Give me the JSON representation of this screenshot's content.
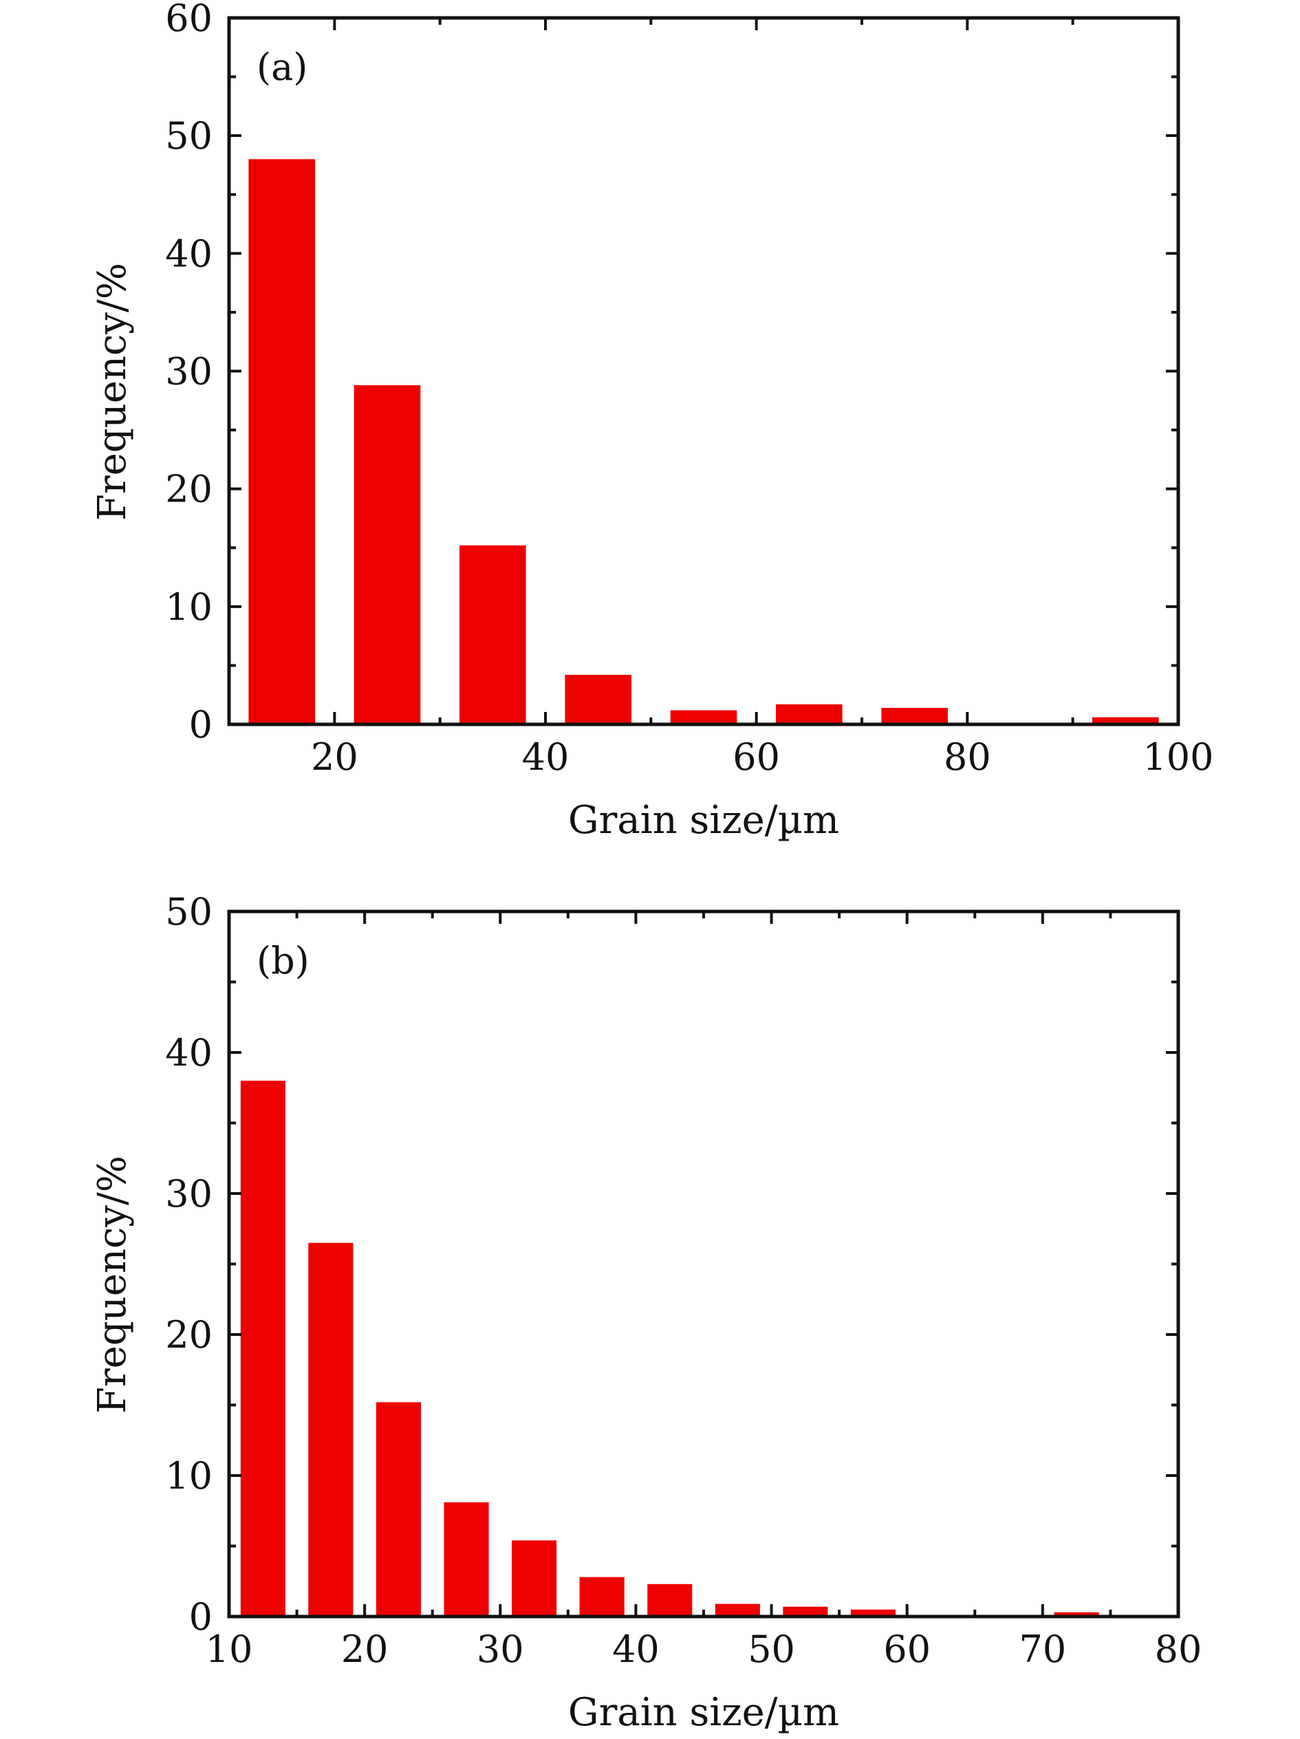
{
  "chart_data": [
    {
      "type": "bar",
      "panel_label": "(a)",
      "xlabel": "Grain size/µm",
      "ylabel": "Frequency/%",
      "xlim": [
        10,
        100
      ],
      "ylim": [
        0,
        60
      ],
      "x_ticks": [
        20,
        40,
        60,
        80,
        100
      ],
      "y_ticks": [
        0,
        10,
        20,
        30,
        40,
        50,
        60
      ],
      "x_minor_step": 10,
      "y_minor_step": 5,
      "bin_width": 10,
      "bar_width": 6.3,
      "x": [
        15,
        25,
        35,
        45,
        55,
        65,
        75,
        85,
        95
      ],
      "values": [
        48.0,
        28.8,
        15.2,
        4.2,
        1.2,
        1.7,
        1.4,
        0,
        0.6
      ],
      "bar_color": "#ee0000",
      "grid": false
    },
    {
      "type": "bar",
      "panel_label": "(b)",
      "xlabel": "Grain size/µm",
      "ylabel": "Frequency/%",
      "xlim": [
        10,
        80
      ],
      "ylim": [
        0,
        50
      ],
      "x_ticks": [
        10,
        20,
        30,
        40,
        50,
        60,
        70,
        80
      ],
      "y_ticks": [
        0,
        10,
        20,
        30,
        40,
        50
      ],
      "x_minor_step": 5,
      "y_minor_step": 5,
      "bin_width": 5,
      "bar_width": 3.3,
      "x": [
        12.5,
        17.5,
        22.5,
        27.5,
        32.5,
        37.5,
        42.5,
        47.5,
        52.5,
        57.5,
        62.5,
        67.5,
        72.5
      ],
      "values": [
        38.0,
        26.5,
        15.2,
        8.1,
        5.4,
        2.8,
        2.3,
        0.9,
        0.7,
        0.5,
        0,
        0,
        0.3
      ],
      "bar_color": "#ee0000",
      "grid": false
    }
  ]
}
